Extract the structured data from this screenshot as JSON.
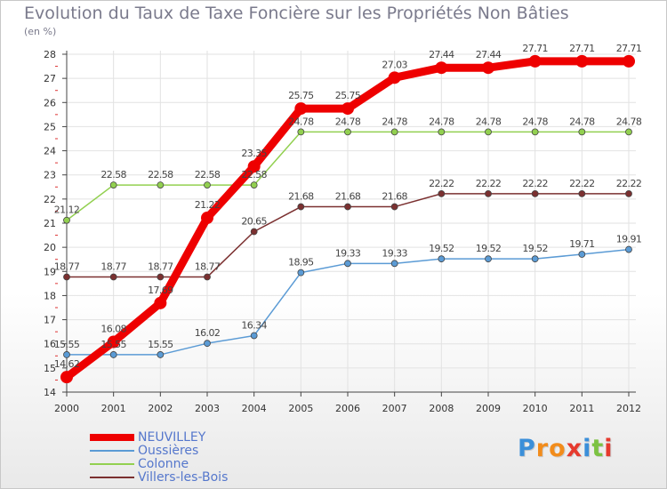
{
  "chart_data": {
    "type": "line",
    "title": "Evolution du Taux de Taxe Foncière sur les Propriétés Non Bâties",
    "ylabel": "(en %)",
    "xlabel": "",
    "categories": [
      "2000",
      "2001",
      "2002",
      "2003",
      "2004",
      "2005",
      "2006",
      "2007",
      "2008",
      "2009",
      "2010",
      "2011",
      "2012"
    ],
    "yticks": [
      14,
      15,
      16,
      17,
      18,
      19,
      20,
      21,
      22,
      23,
      24,
      25,
      26,
      27,
      28
    ],
    "ylim": [
      14,
      28
    ],
    "grid": true,
    "legend_position": "bottom-left",
    "series": [
      {
        "name": "NEUVILLEY",
        "color": "#ee0000",
        "emphasis": true,
        "values": [
          14.62,
          16.08,
          17.69,
          21.22,
          23.35,
          25.75,
          25.75,
          27.03,
          27.44,
          27.44,
          27.71,
          27.71,
          27.71
        ],
        "labels": [
          "14.62",
          "16.08",
          "17.69",
          "21.22",
          "23.35",
          "25.75",
          "25.75",
          "27.03",
          "27.44",
          "27.44",
          "27.71",
          "27.71",
          "27.71"
        ]
      },
      {
        "name": "Oussières",
        "color": "#5b9bd5",
        "emphasis": false,
        "values": [
          15.55,
          15.55,
          15.55,
          16.02,
          16.34,
          18.95,
          19.33,
          19.33,
          19.52,
          19.52,
          19.52,
          19.71,
          19.91
        ],
        "labels": [
          "15.55",
          "15.55",
          "15.55",
          "16.02",
          "16.34",
          "18.95",
          "19.33",
          "19.33",
          "19.52",
          "19.52",
          "19.52",
          "19.71",
          "19.91"
        ]
      },
      {
        "name": "Colonne",
        "color": "#92d050",
        "emphasis": false,
        "values": [
          21.12,
          22.58,
          22.58,
          22.58,
          22.58,
          24.78,
          24.78,
          24.78,
          24.78,
          24.78,
          24.78,
          24.78,
          24.78
        ],
        "labels": [
          "21.12",
          "22.58",
          "22.58",
          "22.58",
          "22.58",
          "24.78",
          "24.78",
          "24.78",
          "24.78",
          "24.78",
          "24.78",
          "24.78",
          "24.78"
        ]
      },
      {
        "name": "Villers-les-Bois",
        "color": "#7b3030",
        "emphasis": false,
        "values": [
          18.77,
          18.77,
          18.77,
          18.77,
          20.65,
          21.68,
          21.68,
          21.68,
          22.22,
          22.22,
          22.22,
          22.22,
          22.22
        ],
        "labels": [
          "18.77",
          "18.77",
          "18.77",
          "18.77",
          "20.65",
          "21.68",
          "21.68",
          "21.68",
          "22.22",
          "22.22",
          "22.22",
          "22.22",
          "22.22"
        ]
      }
    ]
  },
  "logo": {
    "letters": [
      "P",
      "r",
      "o",
      "x",
      "i",
      "t",
      "i"
    ],
    "colors": [
      "#3b8fd9",
      "#f28c1b",
      "#f28c1b",
      "#e63a2e",
      "#3b8fd9",
      "#7cc242",
      "#e63a2e"
    ]
  }
}
